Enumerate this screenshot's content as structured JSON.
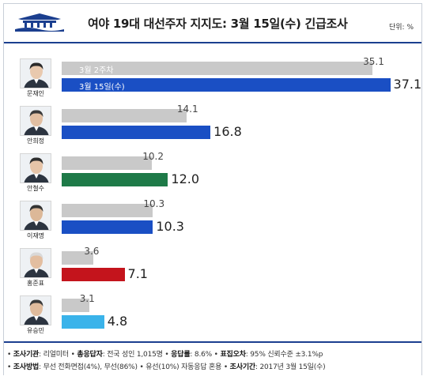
{
  "header": {
    "title": "여야 19대 대선주자 지지도: 3월 15일(수) 긴급조사",
    "unit": "단위: %"
  },
  "chart_data": {
    "type": "bar",
    "orientation": "horizontal",
    "categories": [
      "문재인",
      "안희정",
      "안철수",
      "이재명",
      "홍준표",
      "유승민"
    ],
    "series": [
      {
        "name": "3월 2주차",
        "values": [
          35.1,
          14.1,
          10.2,
          10.3,
          3.6,
          3.1
        ],
        "color": "#c9c9c9"
      },
      {
        "name": "3월 15일(수)",
        "values": [
          37.1,
          16.8,
          12.0,
          10.3,
          7.1,
          4.8
        ],
        "colors": [
          "#1a4fc4",
          "#1a4fc4",
          "#1e7a48",
          "#1a4fc4",
          "#c4141c",
          "#3ab3ea"
        ]
      }
    ],
    "xlim": [
      0,
      40
    ]
  },
  "labels_prev": [
    "35.1",
    "14.1",
    "10.2",
    "10.3",
    "3.6",
    "3.1"
  ],
  "labels_cur": [
    "37.1",
    "16.8",
    "12.0",
    "10.3",
    "7.1",
    "4.8"
  ],
  "footer": {
    "line1": [
      {
        "key": "조사기관",
        "value": "리얼미터"
      },
      {
        "key": "총응답자",
        "value": "전국 성인 1,015명"
      },
      {
        "key": "응답률",
        "value": "8.6%"
      },
      {
        "key": "표집오차",
        "value": "95% 신뢰수준 ±3.1%p"
      }
    ],
    "line2": [
      {
        "key": "조사방법",
        "value": "무선 전화면접(4%), 무선(86%)"
      },
      {
        "key": "",
        "value": "유선(10%) 자동응답 혼용"
      },
      {
        "key": "조사기간",
        "value": "2017년 3월 15일(수)"
      }
    ]
  }
}
